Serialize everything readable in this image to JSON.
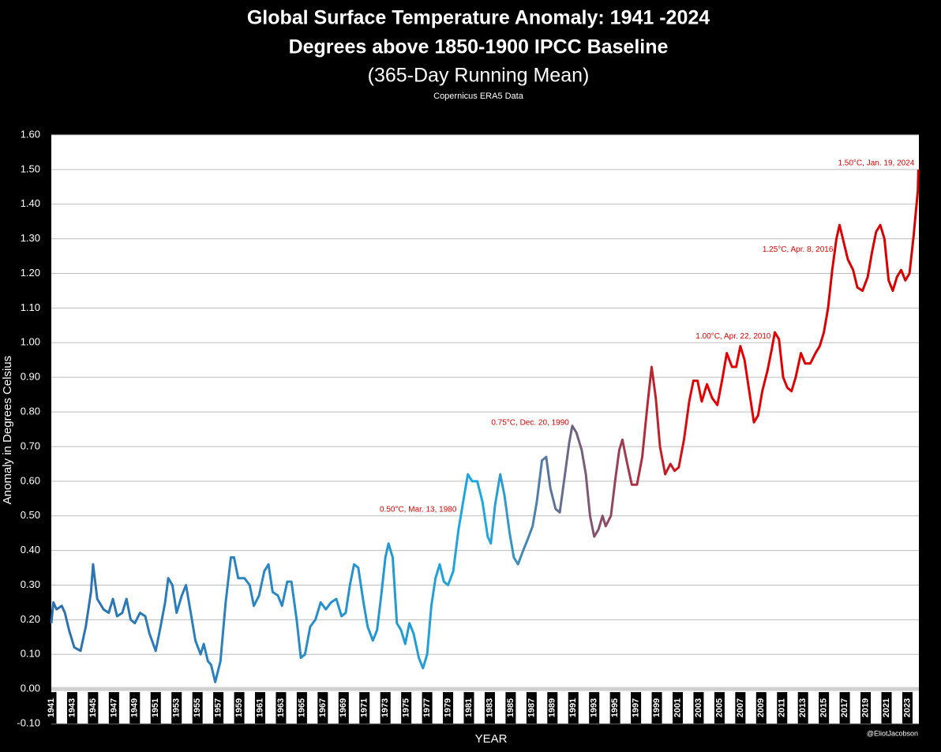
{
  "chart_data": {
    "type": "line",
    "title": "Global Surface Temperature Anomaly: 1941 -2024",
    "title_line2": "Degrees above 1850-1900 IPCC Baseline",
    "subtitle": "(365-Day Running Mean)",
    "source": "Copernicus ERA5 Data",
    "y_label": "Anomaly in Degrees Celsius",
    "x_label": "YEAR",
    "credit": "@EliotJacobson",
    "xlim": [
      1941,
      2024.1
    ],
    "ylim": [
      -0.1,
      1.6
    ],
    "xticks": [
      1941,
      1943,
      1945,
      1947,
      1949,
      1951,
      1953,
      1955,
      1957,
      1959,
      1961,
      1963,
      1965,
      1967,
      1969,
      1971,
      1973,
      1975,
      1977,
      1979,
      1981,
      1983,
      1985,
      1987,
      1989,
      1991,
      1993,
      1995,
      1997,
      1999,
      2001,
      2003,
      2005,
      2007,
      2009,
      2011,
      2013,
      2015,
      2017,
      2019,
      2021,
      2023
    ],
    "yticks": [
      {
        "value": -0.1,
        "label": "-0.10"
      },
      {
        "value": 0,
        "label": "0.00"
      },
      {
        "value": 0.1,
        "label": "0.10"
      },
      {
        "value": 0.2,
        "label": "0.20"
      },
      {
        "value": 0.3,
        "label": "0.30"
      },
      {
        "value": 0.4,
        "label": "0.40"
      },
      {
        "value": 0.5,
        "label": "0.50"
      },
      {
        "value": 0.6,
        "label": "0.60"
      },
      {
        "value": 0.7,
        "label": "0.70"
      },
      {
        "value": 0.8,
        "label": "0.80"
      },
      {
        "value": 0.9,
        "label": "0.90"
      },
      {
        "value": 1.0,
        "label": "1.00"
      },
      {
        "value": 1.1,
        "label": "1.10"
      },
      {
        "value": 1.2,
        "label": "1.20"
      },
      {
        "value": 1.3,
        "label": "1.30"
      },
      {
        "value": 1.4,
        "label": "1.40"
      },
      {
        "value": 1.5,
        "label": "1.50"
      },
      {
        "value": 1.6,
        "label": "1.60"
      }
    ],
    "grid": true,
    "x": [
      1941.0,
      1941.2,
      1941.5,
      1942.0,
      1942.3,
      1942.7,
      1943.2,
      1943.8,
      1944.3,
      1944.8,
      1945.0,
      1945.4,
      1946.0,
      1946.5,
      1946.9,
      1947.3,
      1947.8,
      1948.2,
      1948.6,
      1949.0,
      1949.5,
      1950.0,
      1950.4,
      1951.0,
      1951.4,
      1951.9,
      1952.2,
      1952.6,
      1953.0,
      1953.5,
      1953.9,
      1954.3,
      1954.8,
      1955.3,
      1955.6,
      1956.0,
      1956.3,
      1956.7,
      1957.2,
      1957.7,
      1958.2,
      1958.5,
      1958.9,
      1959.5,
      1960.0,
      1960.4,
      1960.9,
      1961.4,
      1961.8,
      1962.2,
      1962.7,
      1963.1,
      1963.6,
      1964.0,
      1964.5,
      1964.9,
      1965.3,
      1965.8,
      1966.3,
      1966.8,
      1967.3,
      1967.8,
      1968.3,
      1968.8,
      1969.2,
      1969.6,
      1970.0,
      1970.4,
      1970.9,
      1971.3,
      1971.8,
      1972.2,
      1972.6,
      1973.0,
      1973.3,
      1973.7,
      1974.1,
      1974.5,
      1974.9,
      1975.3,
      1975.7,
      1976.2,
      1976.6,
      1977.0,
      1977.4,
      1977.8,
      1978.2,
      1978.6,
      1979.0,
      1979.5,
      1980.0,
      1980.5,
      1980.9,
      1981.3,
      1981.8,
      1982.3,
      1982.8,
      1983.1,
      1983.5,
      1984.0,
      1984.4,
      1984.9,
      1985.3,
      1985.7,
      1986.2,
      1986.6,
      1987.1,
      1987.5,
      1988.0,
      1988.4,
      1988.8,
      1989.3,
      1989.7,
      1990.2,
      1990.6,
      1990.9,
      1991.3,
      1991.8,
      1992.2,
      1992.6,
      1993.0,
      1993.4,
      1993.8,
      1994.1,
      1994.6,
      1995.0,
      1995.4,
      1995.7,
      1996.1,
      1996.6,
      1997.1,
      1997.6,
      1998.1,
      1998.5,
      1998.9,
      1999.3,
      1999.8,
      2000.3,
      2000.7,
      2001.1,
      2001.6,
      2002.1,
      2002.5,
      2002.9,
      2003.3,
      2003.8,
      2004.3,
      2004.8,
      2005.3,
      2005.7,
      2006.2,
      2006.6,
      2007.0,
      2007.4,
      2007.9,
      2008.3,
      2008.7,
      2009.1,
      2009.6,
      2010.0,
      2010.3,
      2010.7,
      2011.1,
      2011.5,
      2011.9,
      2012.3,
      2012.8,
      2013.2,
      2013.7,
      2014.2,
      2014.6,
      2015.0,
      2015.4,
      2015.8,
      2016.2,
      2016.5,
      2016.9,
      2017.3,
      2017.8,
      2018.2,
      2018.7,
      2019.2,
      2019.6,
      2020.0,
      2020.4,
      2020.8,
      2021.2,
      2021.6,
      2022.0,
      2022.4,
      2022.8,
      2023.2,
      2023.6,
      2024.0,
      2024.05
    ],
    "series": [
      {
        "name": "365-Day Running Mean",
        "color": [
          "#2e6fae",
          "#2a86c4",
          "#1ea8e0",
          "#e50000",
          "#d40000"
        ],
        "values": [
          0.19,
          0.25,
          0.23,
          0.24,
          0.22,
          0.17,
          0.12,
          0.11,
          0.18,
          0.28,
          0.36,
          0.26,
          0.23,
          0.22,
          0.26,
          0.21,
          0.22,
          0.26,
          0.2,
          0.19,
          0.22,
          0.21,
          0.16,
          0.11,
          0.17,
          0.25,
          0.32,
          0.3,
          0.22,
          0.27,
          0.3,
          0.23,
          0.14,
          0.1,
          0.13,
          0.08,
          0.07,
          0.02,
          0.08,
          0.25,
          0.38,
          0.38,
          0.32,
          0.32,
          0.3,
          0.24,
          0.27,
          0.34,
          0.36,
          0.28,
          0.27,
          0.24,
          0.31,
          0.31,
          0.2,
          0.09,
          0.1,
          0.18,
          0.2,
          0.25,
          0.23,
          0.25,
          0.26,
          0.21,
          0.22,
          0.3,
          0.36,
          0.35,
          0.25,
          0.18,
          0.14,
          0.17,
          0.27,
          0.38,
          0.42,
          0.38,
          0.19,
          0.17,
          0.13,
          0.19,
          0.16,
          0.09,
          0.06,
          0.1,
          0.24,
          0.32,
          0.36,
          0.31,
          0.3,
          0.34,
          0.46,
          0.55,
          0.62,
          0.6,
          0.6,
          0.54,
          0.44,
          0.42,
          0.53,
          0.62,
          0.56,
          0.45,
          0.38,
          0.36,
          0.4,
          0.43,
          0.47,
          0.54,
          0.66,
          0.67,
          0.58,
          0.52,
          0.51,
          0.62,
          0.71,
          0.76,
          0.74,
          0.69,
          0.62,
          0.5,
          0.44,
          0.46,
          0.5,
          0.47,
          0.5,
          0.6,
          0.69,
          0.72,
          0.66,
          0.59,
          0.59,
          0.67,
          0.82,
          0.93,
          0.84,
          0.7,
          0.62,
          0.65,
          0.63,
          0.64,
          0.72,
          0.83,
          0.89,
          0.89,
          0.83,
          0.88,
          0.84,
          0.82,
          0.9,
          0.97,
          0.93,
          0.93,
          0.99,
          0.95,
          0.85,
          0.77,
          0.79,
          0.86,
          0.92,
          0.98,
          1.03,
          1.01,
          0.9,
          0.87,
          0.86,
          0.9,
          0.97,
          0.94,
          0.94,
          0.97,
          0.99,
          1.03,
          1.1,
          1.21,
          1.3,
          1.34,
          1.29,
          1.24,
          1.21,
          1.16,
          1.15,
          1.19,
          1.26,
          1.32,
          1.34,
          1.3,
          1.18,
          1.15,
          1.19,
          1.21,
          1.18,
          1.2,
          1.31,
          1.44,
          1.5
        ]
      }
    ],
    "annotations": [
      {
        "text": "0.50°C, Mar. 13, 1980",
        "x": 1980.2,
        "y": 0.5,
        "color": "#e00000"
      },
      {
        "text": "0.75°C, Dec. 20, 1990",
        "x": 1990.97,
        "y": 0.75,
        "color": "#e00000"
      },
      {
        "text": "1.00°C, Apr. 22, 2010",
        "x": 2010.3,
        "y": 1.0,
        "color": "#e00000"
      },
      {
        "text": "1.25°C, Apr. 8, 2016",
        "x": 2016.27,
        "y": 1.25,
        "color": "#e00000"
      },
      {
        "text": "1.50°C, Jan. 19, 2024",
        "x": 2024.05,
        "y": 1.5,
        "color": "#e00000"
      }
    ]
  }
}
